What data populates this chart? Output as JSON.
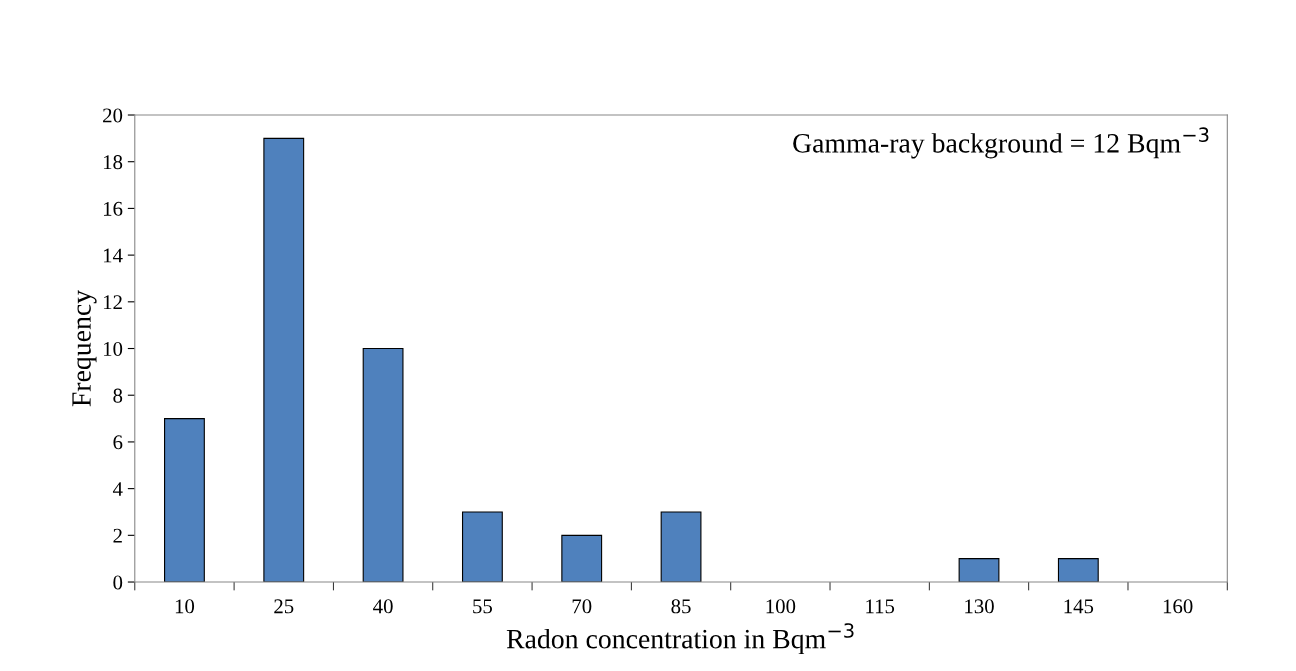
{
  "chart_data": {
    "type": "bar",
    "xlabel": "Radon concentration in Bqm$^{−3}$",
    "ylabel": "Frequency",
    "categories": [
      "10",
      "25",
      "40",
      "55",
      "70",
      "85",
      "100",
      "115",
      "130",
      "145",
      "160"
    ],
    "values": [
      7,
      19,
      10,
      3,
      2,
      3,
      0,
      0,
      1,
      1,
      0
    ],
    "color": "#4f81bd",
    "ylim": [
      0,
      20
    ],
    "yticks": [
      0,
      2,
      4,
      6,
      8,
      10,
      12,
      14,
      16,
      18,
      20
    ],
    "grid": false,
    "annotations": [
      "Gamma-ray background = 12 Bqm$^{−3}$"
    ]
  }
}
